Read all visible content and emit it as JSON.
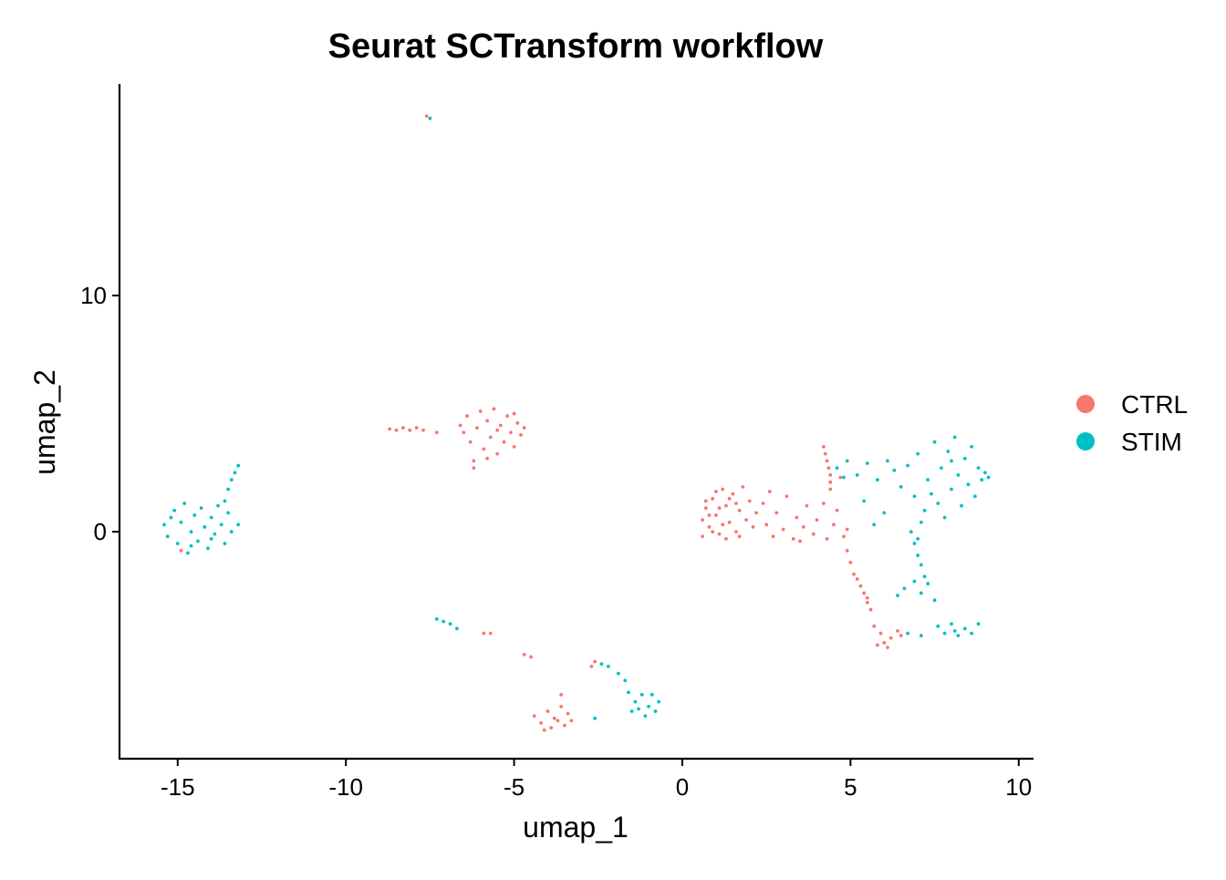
{
  "chart_data": {
    "type": "scatter",
    "title": "Seurat SCTransform workflow",
    "xlabel": "umap_1",
    "ylabel": "umap_2",
    "xlim": [
      -16.73,
      10.44
    ],
    "ylim": [
      -9.61,
      18.96
    ],
    "xticks": [
      -15,
      -10,
      -5,
      0,
      5,
      10
    ],
    "yticks": [
      0,
      10
    ],
    "grid": false,
    "legend_position": "right",
    "series": [
      {
        "name": "CTRL",
        "color": "#F8766D",
        "points": [
          [
            0.6,
            0.5
          ],
          [
            0.7,
            1.0
          ],
          [
            0.8,
            0.2
          ],
          [
            0.9,
            1.4
          ],
          [
            1.0,
            0.7
          ],
          [
            1.1,
            -0.1
          ],
          [
            1.2,
            1.8
          ],
          [
            1.3,
            1.1
          ],
          [
            1.4,
            0.4
          ],
          [
            1.5,
            1.6
          ],
          [
            1.6,
            0.0
          ],
          [
            1.7,
            0.9
          ],
          [
            1.8,
            1.9
          ],
          [
            1.9,
            0.5
          ],
          [
            2.0,
            1.3
          ],
          [
            0.6,
            -0.2
          ],
          [
            0.9,
            0.0
          ],
          [
            1.2,
            0.3
          ],
          [
            1.4,
            1.4
          ],
          [
            1.7,
            -0.2
          ],
          [
            2.1,
            0.2
          ],
          [
            0.7,
            1.3
          ],
          [
            1.0,
            1.7
          ],
          [
            1.3,
            -0.3
          ],
          [
            1.6,
            1.2
          ],
          [
            2.2,
            0.8
          ],
          [
            1.1,
            1.0
          ],
          [
            0.8,
            0.7
          ],
          [
            2.4,
            1.2
          ],
          [
            2.5,
            0.3
          ],
          [
            2.7,
            -0.2
          ],
          [
            2.8,
            0.8
          ],
          [
            3.0,
            0.1
          ],
          [
            3.1,
            1.5
          ],
          [
            3.3,
            -0.3
          ],
          [
            3.4,
            0.6
          ],
          [
            3.6,
            0.2
          ],
          [
            3.7,
            1.1
          ],
          [
            3.9,
            -0.1
          ],
          [
            4.0,
            0.5
          ],
          [
            4.2,
            1.2
          ],
          [
            4.3,
            -0.3
          ],
          [
            4.5,
            0.3
          ],
          [
            4.6,
            0.9
          ],
          [
            4.8,
            -0.2
          ],
          [
            4.9,
            0.1
          ],
          [
            2.6,
            1.7
          ],
          [
            3.5,
            -0.4
          ],
          [
            4.4,
            1.8
          ],
          [
            4.7,
            2.3
          ],
          [
            4.4,
            2.1
          ],
          [
            4.2,
            3.6
          ],
          [
            4.25,
            3.3
          ],
          [
            4.3,
            3.0
          ],
          [
            4.35,
            2.7
          ],
          [
            4.4,
            2.4
          ],
          [
            4.9,
            -0.8
          ],
          [
            5.0,
            -1.3
          ],
          [
            5.1,
            -1.8
          ],
          [
            5.3,
            -2.3
          ],
          [
            5.4,
            -2.6
          ],
          [
            5.5,
            -3.0
          ],
          [
            5.6,
            -3.3
          ],
          [
            5.5,
            -2.8
          ],
          [
            5.2,
            -2.0
          ],
          [
            5.7,
            -4.0
          ],
          [
            5.9,
            -4.3
          ],
          [
            6.0,
            -4.7
          ],
          [
            6.2,
            -4.5
          ],
          [
            6.4,
            -4.2
          ],
          [
            5.8,
            -4.8
          ],
          [
            6.1,
            -4.9
          ],
          [
            6.5,
            -4.4
          ],
          [
            -6.6,
            4.5
          ],
          [
            -6.4,
            4.9
          ],
          [
            -6.3,
            3.8
          ],
          [
            -6.2,
            3.0
          ],
          [
            -6.1,
            4.4
          ],
          [
            -6.0,
            5.1
          ],
          [
            -5.9,
            3.5
          ],
          [
            -5.8,
            4.7
          ],
          [
            -5.7,
            4.0
          ],
          [
            -5.6,
            5.2
          ],
          [
            -5.5,
            3.3
          ],
          [
            -5.4,
            4.5
          ],
          [
            -5.3,
            3.8
          ],
          [
            -5.2,
            4.9
          ],
          [
            -5.1,
            4.2
          ],
          [
            -5.0,
            3.6
          ],
          [
            -4.9,
            4.6
          ],
          [
            -4.8,
            4.1
          ],
          [
            -4.7,
            4.4
          ],
          [
            -6.2,
            2.7
          ],
          [
            -5.8,
            3.1
          ],
          [
            -5.5,
            4.3
          ],
          [
            -6.5,
            4.2
          ],
          [
            -5.0,
            5.0
          ],
          [
            -8.7,
            4.35
          ],
          [
            -8.5,
            4.3
          ],
          [
            -8.3,
            4.4
          ],
          [
            -8.1,
            4.3
          ],
          [
            -7.9,
            4.4
          ],
          [
            -7.7,
            4.3
          ],
          [
            -7.3,
            4.2
          ],
          [
            -4.4,
            -7.8
          ],
          [
            -4.2,
            -8.1
          ],
          [
            -4.0,
            -7.6
          ],
          [
            -3.9,
            -8.3
          ],
          [
            -3.8,
            -7.9
          ],
          [
            -3.6,
            -7.4
          ],
          [
            -3.5,
            -8.2
          ],
          [
            -3.4,
            -7.7
          ],
          [
            -3.3,
            -8.0
          ],
          [
            -3.6,
            -6.9
          ],
          [
            -4.1,
            -8.4
          ],
          [
            -3.7,
            -8.0
          ],
          [
            -5.9,
            -4.3
          ],
          [
            -5.7,
            -4.3
          ],
          [
            -4.7,
            -5.2
          ],
          [
            -4.5,
            -5.3
          ],
          [
            -2.6,
            -5.5
          ],
          [
            -2.7,
            -5.7
          ],
          [
            -7.6,
            17.6
          ],
          [
            -14.9,
            -0.8
          ]
        ]
      },
      {
        "name": "STIM",
        "color": "#00BFC4",
        "points": [
          [
            -15.4,
            0.3
          ],
          [
            -15.3,
            -0.2
          ],
          [
            -15.1,
            0.9
          ],
          [
            -15.0,
            -0.5
          ],
          [
            -14.9,
            0.4
          ],
          [
            -14.8,
            1.2
          ],
          [
            -14.7,
            -0.9
          ],
          [
            -14.6,
            0.0
          ],
          [
            -14.5,
            0.7
          ],
          [
            -14.4,
            -0.4
          ],
          [
            -14.3,
            1.0
          ],
          [
            -14.2,
            0.2
          ],
          [
            -14.1,
            -0.7
          ],
          [
            -14.0,
            0.6
          ],
          [
            -13.9,
            -0.1
          ],
          [
            -13.8,
            1.1
          ],
          [
            -13.7,
            0.3
          ],
          [
            -13.6,
            -0.5
          ],
          [
            -13.5,
            0.8
          ],
          [
            -13.4,
            0.0
          ],
          [
            -13.2,
            0.3
          ],
          [
            -15.2,
            0.6
          ],
          [
            -14.6,
            -0.6
          ],
          [
            -14.0,
            -0.3
          ],
          [
            -13.6,
            1.3
          ],
          [
            -13.5,
            1.8
          ],
          [
            -13.4,
            2.2
          ],
          [
            -13.3,
            2.5
          ],
          [
            -13.2,
            2.8
          ],
          [
            6.7,
            2.8
          ],
          [
            6.9,
            1.5
          ],
          [
            7.0,
            3.3
          ],
          [
            7.2,
            0.9
          ],
          [
            7.3,
            2.2
          ],
          [
            7.5,
            3.8
          ],
          [
            7.6,
            1.2
          ],
          [
            7.7,
            2.7
          ],
          [
            7.8,
            0.6
          ],
          [
            7.9,
            3.4
          ],
          [
            8.0,
            1.8
          ],
          [
            8.1,
            4.0
          ],
          [
            8.2,
            2.4
          ],
          [
            8.3,
            1.1
          ],
          [
            8.4,
            3.1
          ],
          [
            8.5,
            2.0
          ],
          [
            8.6,
            3.6
          ],
          [
            8.7,
            1.5
          ],
          [
            8.8,
            2.7
          ],
          [
            8.9,
            2.2
          ],
          [
            9.0,
            2.5
          ],
          [
            9.1,
            2.3
          ],
          [
            7.4,
            1.6
          ],
          [
            8.0,
            3.0
          ],
          [
            7.1,
            0.4
          ],
          [
            4.6,
            2.7
          ],
          [
            4.9,
            3.0
          ],
          [
            5.2,
            2.4
          ],
          [
            5.5,
            2.9
          ],
          [
            5.8,
            2.2
          ],
          [
            6.1,
            3.0
          ],
          [
            6.3,
            2.6
          ],
          [
            5.4,
            1.3
          ],
          [
            6.0,
            0.8
          ],
          [
            6.5,
            1.9
          ],
          [
            5.7,
            0.3
          ],
          [
            4.8,
            2.3
          ],
          [
            6.8,
            0.0
          ],
          [
            6.9,
            -0.5
          ],
          [
            7.0,
            -1.0
          ],
          [
            7.1,
            -1.4
          ],
          [
            7.0,
            -0.3
          ],
          [
            6.6,
            -2.4
          ],
          [
            6.9,
            -2.1
          ],
          [
            7.1,
            -2.6
          ],
          [
            7.3,
            -2.2
          ],
          [
            7.5,
            -2.9
          ],
          [
            6.4,
            -2.7
          ],
          [
            7.2,
            -1.9
          ],
          [
            7.6,
            -4.0
          ],
          [
            7.8,
            -4.3
          ],
          [
            8.0,
            -3.9
          ],
          [
            8.2,
            -4.4
          ],
          [
            8.4,
            -4.1
          ],
          [
            8.6,
            -4.3
          ],
          [
            8.8,
            -3.9
          ],
          [
            8.1,
            -4.2
          ],
          [
            7.1,
            -4.4
          ],
          [
            6.7,
            -4.3
          ],
          [
            -7.3,
            -3.7
          ],
          [
            -7.1,
            -3.8
          ],
          [
            -6.9,
            -3.9
          ],
          [
            -6.7,
            -4.1
          ],
          [
            -2.4,
            -5.6
          ],
          [
            -2.2,
            -5.7
          ],
          [
            -1.9,
            -6.0
          ],
          [
            -1.7,
            -6.3
          ],
          [
            -1.6,
            -6.8
          ],
          [
            -1.4,
            -7.2
          ],
          [
            -1.2,
            -6.9
          ],
          [
            -1.0,
            -7.4
          ],
          [
            -0.8,
            -7.6
          ],
          [
            -0.7,
            -7.2
          ],
          [
            -1.1,
            -7.8
          ],
          [
            -1.5,
            -7.6
          ],
          [
            -0.9,
            -6.9
          ],
          [
            -1.3,
            -7.5
          ],
          [
            -2.6,
            -7.9
          ],
          [
            -7.5,
            17.5
          ]
        ]
      }
    ]
  }
}
